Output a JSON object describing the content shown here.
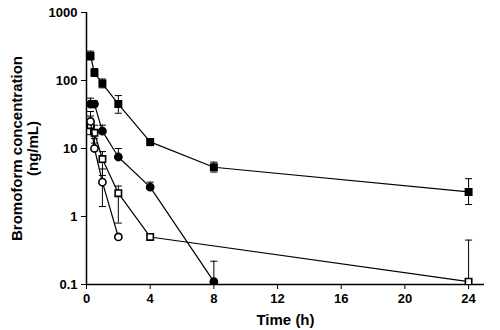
{
  "chart_data": {
    "type": "line",
    "x_label": "Time (h)",
    "y_label": "Bromoform concentration\n(ng/mL)",
    "log": "y",
    "xlim": [
      0,
      25
    ],
    "xticks": [
      0,
      4,
      8,
      12,
      16,
      20,
      24
    ],
    "ylim": [
      0.1,
      1000
    ],
    "yticks": [
      0.1,
      1,
      10,
      100,
      1000
    ],
    "grid": false,
    "series": [
      {
        "color": "#000000",
        "marker": "square",
        "x": [
          0.25,
          0.5,
          1,
          2,
          4,
          8,
          24
        ],
        "values": [
          230,
          130,
          90,
          45,
          12.5,
          5.3,
          2.3
        ],
        "error_high": [
          270,
          150,
          105,
          60,
          14,
          6.3,
          3.6
        ],
        "error_low": [
          200,
          115,
          78,
          33,
          11,
          4.5,
          1.5
        ]
      },
      {
        "color": "#000000",
        "marker": "circle",
        "x": [
          0.25,
          0.5,
          1,
          2,
          4,
          8
        ],
        "values": [
          45,
          45,
          18,
          7.5,
          2.7,
          0.11
        ],
        "error_high": [
          55,
          50,
          22,
          10,
          3.2,
          0.22
        ],
        "error_low": [
          null,
          null,
          null,
          null,
          null,
          null
        ]
      },
      {
        "color": "#000000",
        "marker": "square-open",
        "x": [
          0.25,
          0.5,
          1,
          2,
          4,
          24
        ],
        "values": [
          22,
          17,
          7,
          2.2,
          0.5,
          0.11
        ],
        "error_high": [
          30,
          22,
          9,
          2.8,
          null,
          0.45
        ],
        "error_low": [
          16,
          12,
          4,
          0.8,
          null,
          null
        ]
      },
      {
        "color": "#000000",
        "marker": "circle-open",
        "x": [
          0.25,
          0.5,
          1,
          2
        ],
        "values": [
          25,
          10,
          3.2,
          0.5
        ],
        "error_high": [
          35,
          14,
          5,
          null
        ],
        "error_low": [
          null,
          null,
          1.4,
          null
        ]
      }
    ]
  }
}
